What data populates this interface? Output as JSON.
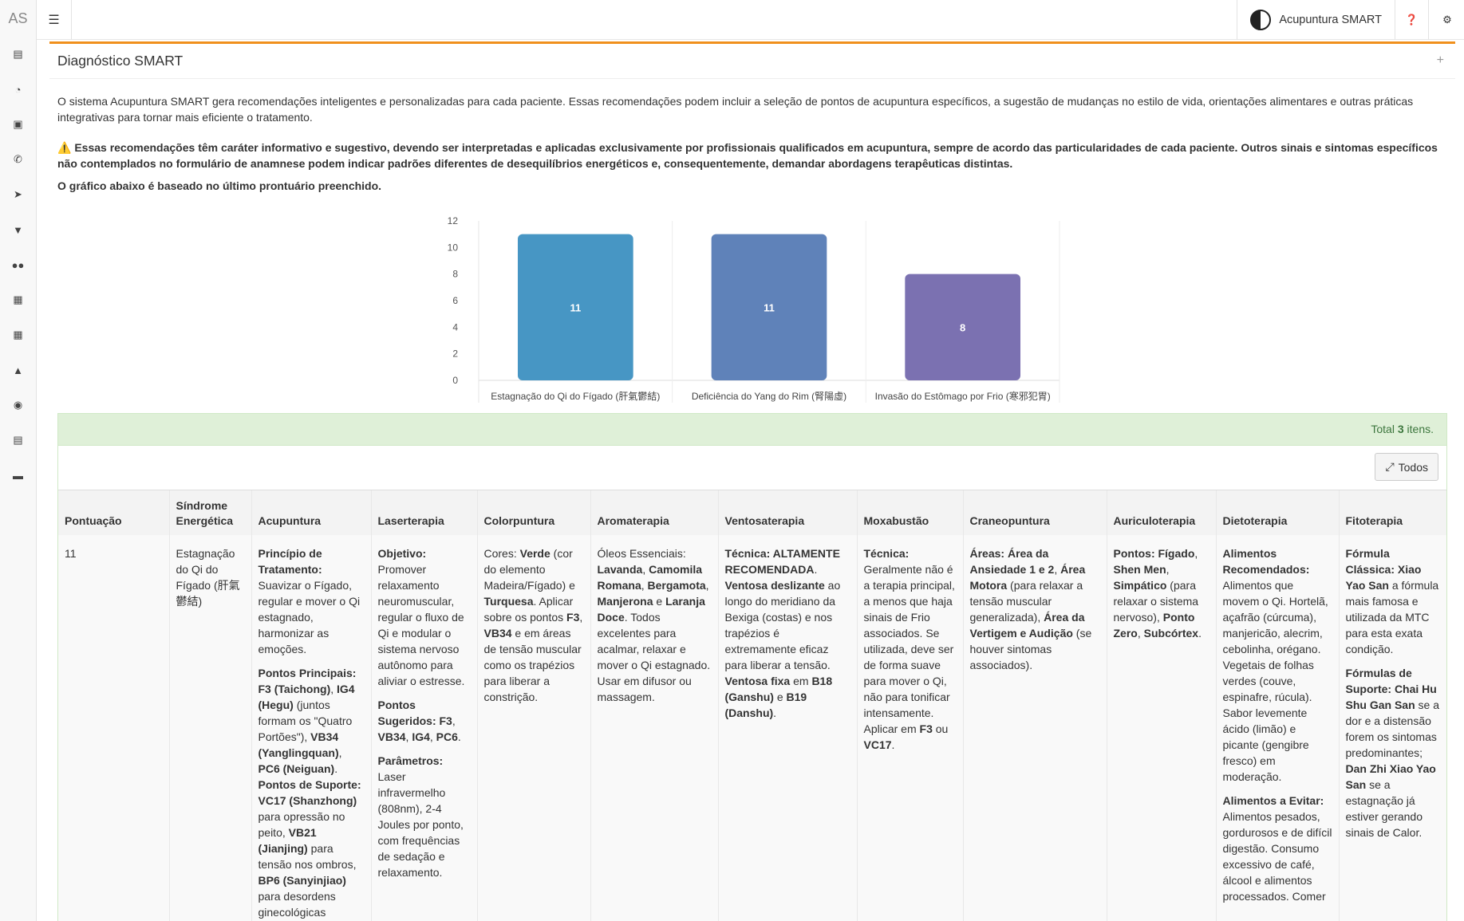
{
  "sidebar": {
    "logo": "AS",
    "icons": [
      "bar-chart-icon",
      "dashboard-icon",
      "money-icon",
      "whatsapp-icon",
      "rocket-icon",
      "filter-icon",
      "users-icon",
      "calendar-icon",
      "calculator-icon",
      "tree-icon",
      "map-pin-icon",
      "file-icon",
      "credit-card-icon"
    ]
  },
  "topbar": {
    "brand": "Acupuntura SMART",
    "help_icon": "question-circle-icon",
    "settings_icon": "gears-icon"
  },
  "panel": {
    "title": "Diagnóstico SMART",
    "intro": "O sistema Acupuntura SMART gera recomendações inteligentes e personalizadas para cada paciente. Essas recomendações podem incluir a seleção de pontos de acupuntura específicos, a sugestão de mudanças no estilo de vida, orientações alimentares e outras práticas integrativas para tornar mais eficiente o tratamento.",
    "warning": "Essas recomendações têm caráter informativo e sugestivo, devendo ser interpretadas e aplicadas exclusivamente por profissionais qualificados em acupuntura, sempre de acordo das particularidades de cada paciente. Outros sinais e sintomas específicos não contemplados no formulário de anamnese podem indicar padrões diferentes de desequilíbrios energéticos e, consequentemente, demandar abordagens terapêuticas distintas.",
    "basis": "O gráfico abaixo é baseado no último prontuário preenchido."
  },
  "chart_data": {
    "type": "bar",
    "categories": [
      "Estagnação do Qi do Fígado (肝氣鬱結)",
      "Deficiência do Yang do Rim (腎陽虛)",
      "Invasão do Estômago por Frio (寒邪犯胃)"
    ],
    "values": [
      11,
      11,
      8
    ],
    "colors": [
      "#4796c4",
      "#5f82b9",
      "#7b71b1"
    ],
    "ylim": [
      0,
      12
    ],
    "yticks": [
      0,
      2,
      4,
      6,
      8,
      10,
      12
    ],
    "grid": true
  },
  "summary": {
    "prefix": "Total ",
    "count": "3",
    "suffix": " itens."
  },
  "toolbar": {
    "todos": "Todos"
  },
  "table": {
    "headers": [
      "Pontuação",
      "Síndrome Energética",
      "Acupuntura",
      "Laserterapia",
      "Colorpuntura",
      "Aromaterapia",
      "Ventosaterapia",
      "Moxabustão",
      "Craneopuntura",
      "Auriculoterapia",
      "Dietoterapia",
      "Fitoterapia"
    ],
    "rows": [
      {
        "score": "11",
        "syndrome": "Estagnação do Qi do Fígado (肝氣鬱結)",
        "cells": [
          [
            [
              {
                "b": 1,
                "t": "Princípio de Tratamento:"
              },
              {
                "t": " Suavizar o Fígado, regular e mover o Qi estagnado, harmonizar as emoções."
              }
            ],
            [
              {
                "b": 1,
                "t": "Pontos Principais: F3 (Taichong)"
              },
              {
                "t": ", "
              },
              {
                "b": 1,
                "t": "IG4 (Hegu)"
              },
              {
                "t": " (juntos formam os \"Quatro Portões\"), "
              },
              {
                "b": 1,
                "t": "VB34 (Yanglingquan)"
              },
              {
                "t": ", "
              },
              {
                "b": 1,
                "t": "PC6 (Neiguan)"
              },
              {
                "t": ". "
              },
              {
                "b": 1,
                "t": "Pontos de Suporte: VC17 (Shanzhong)"
              },
              {
                "t": " para opressão no peito, "
              },
              {
                "b": 1,
                "t": "VB21 (Jianjing)"
              },
              {
                "t": " para tensão nos ombros, "
              },
              {
                "b": 1,
                "t": "BP6 (Sanyinjiao)"
              },
              {
                "t": " para desordens ginecológicas"
              }
            ]
          ],
          [
            [
              {
                "b": 1,
                "t": "Objetivo:"
              },
              {
                "t": " Promover relaxamento neuromuscular, regular o fluxo de Qi e modular o sistema nervoso autônomo para aliviar o estresse."
              }
            ],
            [
              {
                "b": 1,
                "t": "Pontos Sugeridos: F3"
              },
              {
                "t": ", "
              },
              {
                "b": 1,
                "t": "VB34"
              },
              {
                "t": ", "
              },
              {
                "b": 1,
                "t": "IG4"
              },
              {
                "t": ", "
              },
              {
                "b": 1,
                "t": "PC6"
              },
              {
                "t": "."
              }
            ],
            [
              {
                "b": 1,
                "t": "Parâmetros:"
              },
              {
                "t": " Laser infravermelho (808nm), 2-4 Joules por ponto, com frequências de sedação e relaxamento."
              }
            ]
          ],
          [
            [
              {
                "t": "Cores: "
              },
              {
                "b": 1,
                "t": "Verde"
              },
              {
                "t": " (cor do elemento Madeira/Fígado) e "
              },
              {
                "b": 1,
                "t": "Turquesa"
              },
              {
                "t": ". Aplicar sobre os pontos "
              },
              {
                "b": 1,
                "t": "F3"
              },
              {
                "t": ", "
              },
              {
                "b": 1,
                "t": "VB34"
              },
              {
                "t": " e em áreas de tensão muscular como os trapézios para liberar a constrição."
              }
            ]
          ],
          [
            [
              {
                "t": "Óleos Essenciais: "
              },
              {
                "b": 1,
                "t": "Lavanda"
              },
              {
                "t": ", "
              },
              {
                "b": 1,
                "t": "Camomila Romana"
              },
              {
                "t": ", "
              },
              {
                "b": 1,
                "t": "Bergamota"
              },
              {
                "t": ", "
              },
              {
                "b": 1,
                "t": "Manjerona"
              },
              {
                "t": " e "
              },
              {
                "b": 1,
                "t": "Laranja Doce"
              },
              {
                "t": ". Todos excelentes para acalmar, relaxar e mover o Qi estagnado. Usar em difusor ou massagem."
              }
            ]
          ],
          [
            [
              {
                "b": 1,
                "t": "Técnica: ALTAMENTE RECOMENDADA"
              },
              {
                "t": ". "
              },
              {
                "b": 1,
                "t": "Ventosa deslizante"
              },
              {
                "t": " ao longo do meridiano da Bexiga (costas) e nos trapézios é extremamente eficaz para liberar a tensão. "
              },
              {
                "b": 1,
                "t": "Ventosa fixa"
              },
              {
                "t": " em "
              },
              {
                "b": 1,
                "t": "B18 (Ganshu)"
              },
              {
                "t": " e "
              },
              {
                "b": 1,
                "t": "B19 (Danshu)"
              },
              {
                "t": "."
              }
            ]
          ],
          [
            [
              {
                "b": 1,
                "t": "Técnica:"
              },
              {
                "t": " Geralmente não é a terapia principal, a menos que haja sinais de Frio associados. Se utilizada, deve ser de forma suave para mover o Qi, não para tonificar intensamente. Aplicar em "
              },
              {
                "b": 1,
                "t": "F3"
              },
              {
                "t": " ou "
              },
              {
                "b": 1,
                "t": "VC17"
              },
              {
                "t": "."
              }
            ]
          ],
          [
            [
              {
                "b": 1,
                "t": "Áreas: Área da Ansiedade 1 e 2"
              },
              {
                "t": ", "
              },
              {
                "b": 1,
                "t": "Área Motora"
              },
              {
                "t": " (para relaxar a tensão muscular generalizada), "
              },
              {
                "b": 1,
                "t": "Área da Vertigem e Audição"
              },
              {
                "t": " (se houver sintomas associados)."
              }
            ]
          ],
          [
            [
              {
                "b": 1,
                "t": "Pontos: Fígado"
              },
              {
                "t": ", "
              },
              {
                "b": 1,
                "t": "Shen Men"
              },
              {
                "t": ", "
              },
              {
                "b": 1,
                "t": "Simpático"
              },
              {
                "t": " (para relaxar o sistema nervoso), "
              },
              {
                "b": 1,
                "t": "Ponto Zero"
              },
              {
                "t": ", "
              },
              {
                "b": 1,
                "t": "Subcórtex"
              },
              {
                "t": "."
              }
            ]
          ],
          [
            [
              {
                "b": 1,
                "t": "Alimentos Recomendados:"
              },
              {
                "t": " Alimentos que movem o Qi. Hortelã, açafrão (cúrcuma), manjericão, alecrim, cebolinha, orégano. Vegetais de folhas verdes (couve, espinafre, rúcula). Sabor levemente ácido (limão) e picante (gengibre fresco) em moderação."
              }
            ],
            [
              {
                "b": 1,
                "t": "Alimentos a Evitar:"
              },
              {
                "t": " Alimentos pesados, gordurosos e de difícil digestão. Consumo excessivo de café, álcool e alimentos processados. Comer"
              }
            ]
          ],
          [
            [
              {
                "b": 1,
                "t": "Fórmula Clássica: Xiao Yao San"
              },
              {
                "t": " a fórmula mais famosa e utilizada da MTC para esta exata condição."
              }
            ],
            [
              {
                "b": 1,
                "t": "Fórmulas de Suporte: Chai Hu Shu Gan San"
              },
              {
                "t": " se a dor e a distensão forem os sintomas predominantes; "
              },
              {
                "b": 1,
                "t": "Dan Zhi Xiao Yao San"
              },
              {
                "t": " se a estagnação já estiver gerando sinais de Calor."
              }
            ]
          ]
        ]
      }
    ]
  }
}
